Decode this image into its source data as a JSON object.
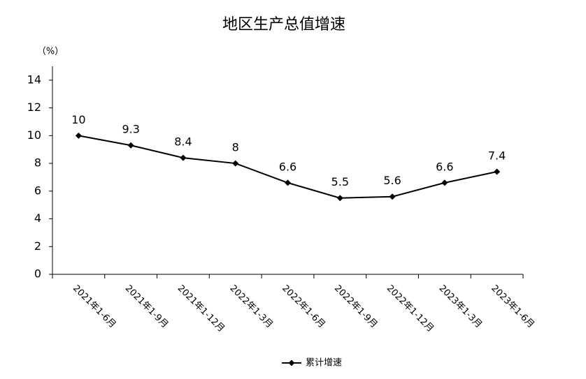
{
  "chart_data": {
    "type": "line",
    "title": "地区生产总值增速",
    "y_unit": "（%）",
    "categories": [
      "2021年1-6月",
      "2021年1-9月",
      "2021年1-12月",
      "2022年1-3月",
      "2022年1-6月",
      "2022年1-9月",
      "2022年1-12月",
      "2023年1-3月",
      "2023年1-6月"
    ],
    "series": [
      {
        "name": "累计增速",
        "color": "#000000",
        "values": [
          10,
          9.3,
          8.4,
          8,
          6.6,
          5.5,
          5.6,
          6.6,
          7.4
        ]
      }
    ],
    "ylim": [
      0,
      15
    ],
    "yticks": [
      0,
      2,
      4,
      6,
      8,
      10,
      12,
      14
    ],
    "grid": false,
    "legend": "bottom"
  }
}
